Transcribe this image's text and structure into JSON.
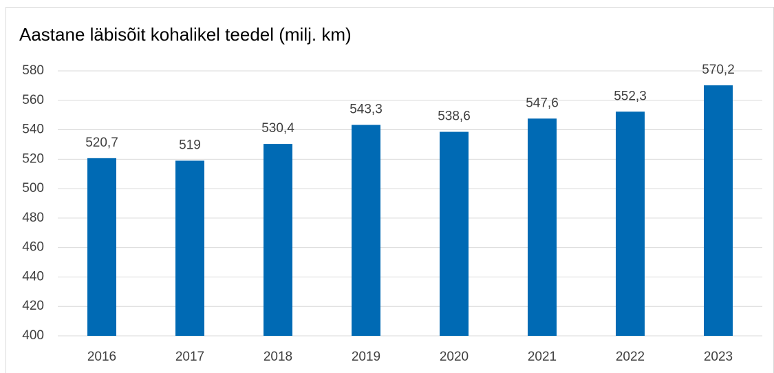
{
  "chart_data": {
    "type": "bar",
    "title": "Aastane läbisõit kohalikel teedel (milj. km)",
    "categories": [
      "2016",
      "2017",
      "2018",
      "2019",
      "2020",
      "2021",
      "2022",
      "2023"
    ],
    "values": [
      520.7,
      519,
      530.4,
      543.3,
      538.6,
      547.6,
      552.3,
      570.2
    ],
    "value_labels": [
      "520,7",
      "519",
      "530,4",
      "543,3",
      "538,6",
      "547,6",
      "552,3",
      "570,2"
    ],
    "color": "#006ab4",
    "ylim": [
      400,
      580
    ],
    "yticks": [
      400,
      420,
      440,
      460,
      480,
      500,
      520,
      540,
      560,
      580
    ],
    "grid": true
  }
}
